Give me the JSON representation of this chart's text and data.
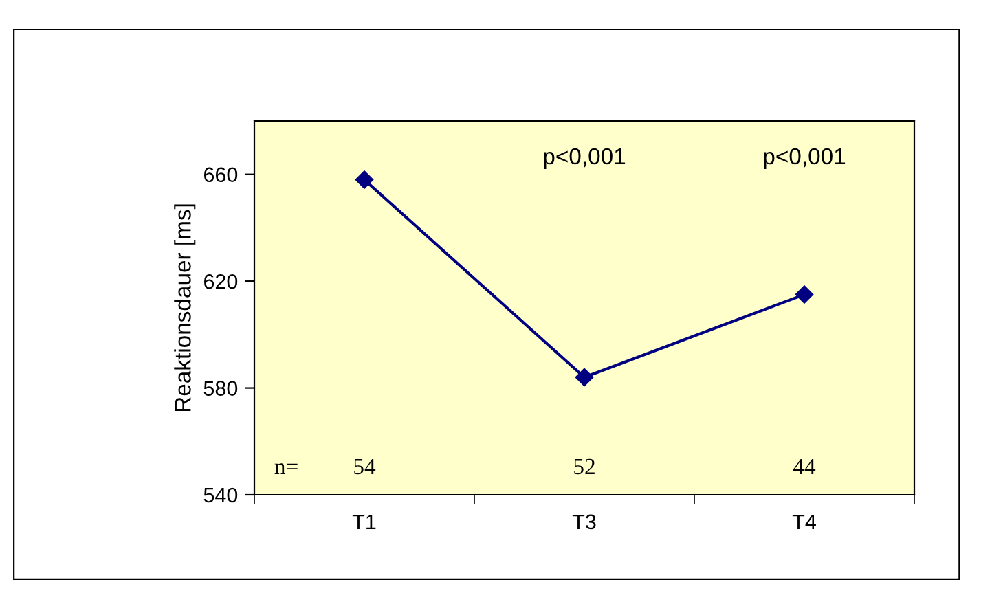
{
  "chart_data": {
    "type": "line",
    "ylabel": "Reaktionsdauer [ms]",
    "categories": [
      "T1",
      "T3",
      "T4"
    ],
    "series": [
      {
        "color": "#000080",
        "values": [
          658,
          584,
          615
        ]
      }
    ],
    "ylim": [
      540,
      680
    ],
    "yticks": [
      540,
      580,
      620,
      660
    ],
    "marker": "diamond",
    "line_style": "solid",
    "grid": false,
    "legend": false,
    "annotations": [
      "p<0,001",
      "p<0,001",
      "n=",
      "54",
      "52",
      "44"
    ]
  }
}
